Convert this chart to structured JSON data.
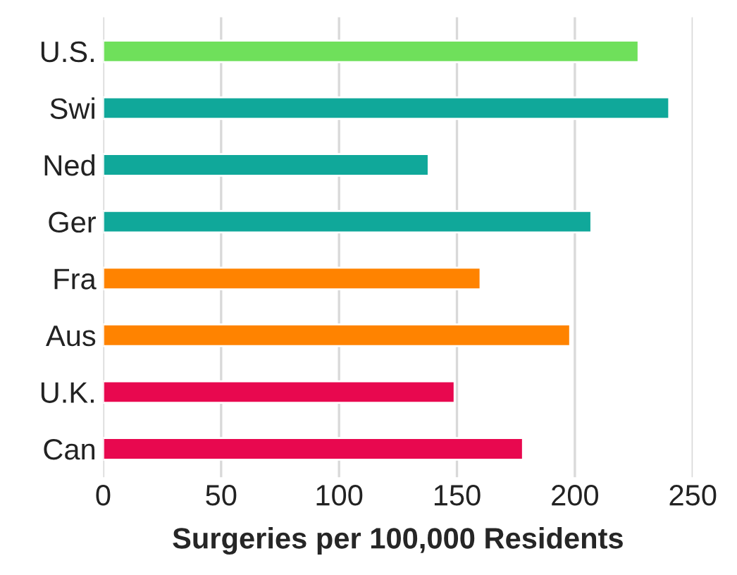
{
  "chart_data": {
    "type": "bar",
    "orientation": "horizontal",
    "xlabel": "Surgeries per 100,000 Residents",
    "categories": [
      "U.S.",
      "Swi",
      "Ned",
      "Ger",
      "Fra",
      "Aus",
      "U.K.",
      "Can"
    ],
    "values": [
      227,
      240,
      138,
      207,
      160,
      198,
      149,
      178
    ],
    "colors": [
      "#6fe05b",
      "#10a89a",
      "#10a89a",
      "#10a89a",
      "#ff8300",
      "#ff8300",
      "#e8084f",
      "#e8084f"
    ],
    "xlim": [
      0,
      250
    ],
    "xticks": [
      0,
      50,
      100,
      150,
      200,
      250
    ],
    "grid": "x"
  }
}
